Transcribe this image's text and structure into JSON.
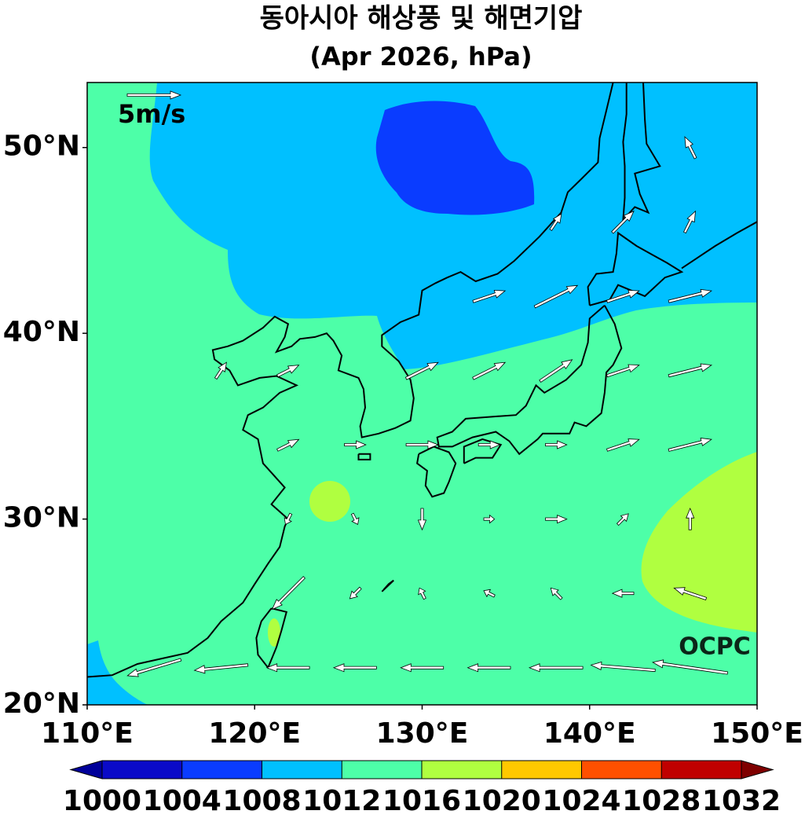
{
  "map": {
    "type": "contour-vector",
    "title": "동아시아 해상풍 및 해면기압",
    "subtitle": "(Apr 2026, hPa)",
    "xlim": [
      110,
      150
    ],
    "ylim": [
      20,
      53.5
    ],
    "xticks": [
      {
        "value": 110,
        "label": "110°E"
      },
      {
        "value": 120,
        "label": "120°E"
      },
      {
        "value": 130,
        "label": "130°E"
      },
      {
        "value": 140,
        "label": "140°E"
      },
      {
        "value": 150,
        "label": "150°E"
      }
    ],
    "yticks": [
      {
        "value": 20,
        "label": "20°N"
      },
      {
        "value": 30,
        "label": "30°N"
      },
      {
        "value": 40,
        "label": "40°N"
      },
      {
        "value": 50,
        "label": "50°N"
      }
    ],
    "reference_vector": {
      "value": 5,
      "label": "5m/s"
    },
    "watermark": "OCPC",
    "colorbar": {
      "levels": [
        1000,
        1004,
        1008,
        1012,
        1016,
        1020,
        1024,
        1028,
        1032
      ],
      "colors": [
        "#0a0ac8",
        "#0a3cff",
        "#00c0ff",
        "#4dffa8",
        "#b0ff40",
        "#ffc800",
        "#ff5000",
        "#c00000"
      ],
      "under_color": "#00009a",
      "over_color": "#7f0000"
    },
    "wind": {
      "lon": [
        114,
        118,
        122,
        126,
        130,
        134,
        138,
        142,
        146
      ],
      "lat": [
        22,
        26,
        30,
        34,
        38,
        42,
        46,
        50
      ],
      "u": [
        [
          -5,
          -5,
          -4,
          -4,
          -4,
          -4,
          -5,
          -6,
          -7
        ],
        [
          null,
          null,
          -3,
          -1,
          -0.5,
          -1,
          -1,
          -2,
          -3
        ],
        [
          null,
          null,
          -0.5,
          0.5,
          0,
          1,
          2,
          1,
          0
        ],
        [
          null,
          null,
          2,
          2,
          3,
          2,
          2,
          3,
          4
        ],
        [
          null,
          1,
          2,
          null,
          3,
          3,
          3,
          3,
          4
        ],
        [
          null,
          null,
          null,
          null,
          null,
          3,
          4,
          3,
          4
        ],
        [
          null,
          null,
          null,
          null,
          null,
          null,
          1,
          2,
          1
        ],
        [
          null,
          null,
          null,
          null,
          null,
          null,
          null,
          null,
          -1
        ]
      ],
      "v": [
        [
          -1.5,
          -0.5,
          0,
          0,
          0,
          0,
          0,
          0.5,
          1
        ],
        [
          null,
          null,
          -3,
          -1,
          1,
          0.5,
          1,
          0,
          1
        ],
        [
          null,
          null,
          -1,
          -1,
          -2,
          0,
          0,
          1,
          2
        ],
        [
          null,
          null,
          1,
          0,
          0,
          0,
          0,
          1,
          1
        ],
        [
          null,
          1.5,
          1,
          null,
          1.5,
          1.5,
          2,
          1,
          1
        ],
        [
          null,
          null,
          null,
          null,
          null,
          1,
          2,
          1,
          1
        ],
        [
          null,
          null,
          null,
          null,
          null,
          null,
          1.5,
          2,
          2
        ],
        [
          null,
          null,
          null,
          null,
          null,
          null,
          null,
          null,
          2
        ]
      ]
    }
  }
}
